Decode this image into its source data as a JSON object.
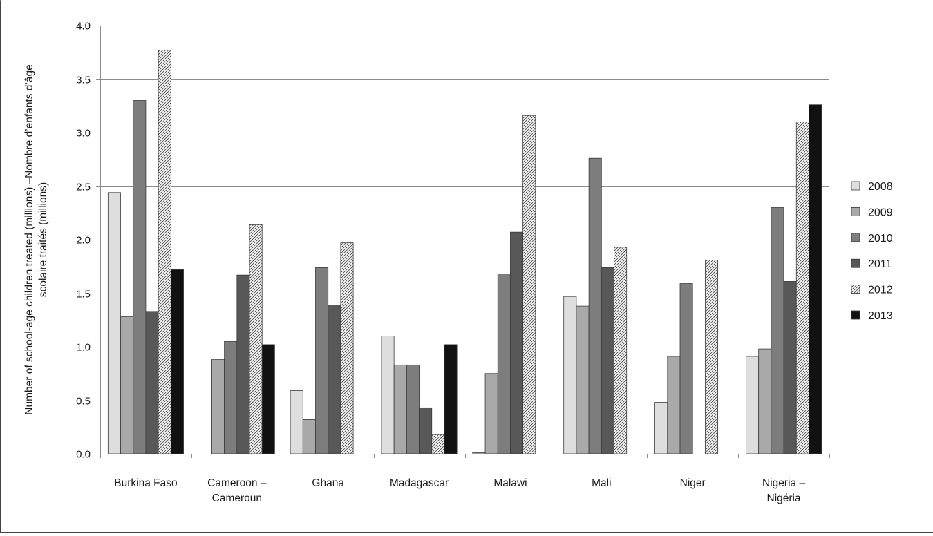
{
  "chart_data": {
    "type": "bar",
    "title": "",
    "ylabel_lines": [
      "Number of school-age children treated (millions) –Nombre d’enfants d’âge",
      "scolaire traités (millions)"
    ],
    "xlabel": "",
    "ylim": [
      0,
      4.0
    ],
    "yticks": [
      0.0,
      0.5,
      1.0,
      1.5,
      2.0,
      2.5,
      3.0,
      3.5,
      4.0
    ],
    "ytick_labels": [
      "0.0",
      "0.5",
      "1.0",
      "1.5",
      "2.0",
      "2.5",
      "3.0",
      "3.5",
      "4.0"
    ],
    "grid": true,
    "legend_position": "right",
    "categories": [
      [
        "Burkina Faso"
      ],
      [
        "Cameroon –",
        "Cameroun"
      ],
      [
        "Ghana"
      ],
      [
        "Madagascar"
      ],
      [
        "Malawi"
      ],
      [
        "Mali"
      ],
      [
        "Niger"
      ],
      [
        "Nigeria –",
        "Nigéria"
      ]
    ],
    "series": [
      {
        "name": "2008",
        "fill": "#dedede",
        "pattern": false,
        "values": [
          2.44,
          0,
          0.59,
          1.1,
          0.01,
          1.47,
          0.48,
          0.91
        ]
      },
      {
        "name": "2009",
        "fill": "#a9a9a9",
        "pattern": false,
        "values": [
          1.28,
          0.88,
          0.32,
          0.83,
          0.75,
          1.38,
          0.91,
          0.98
        ]
      },
      {
        "name": "2010",
        "fill": "#7d7d7d",
        "pattern": false,
        "values": [
          3.3,
          1.05,
          1.74,
          0.83,
          1.68,
          2.76,
          1.59,
          2.3
        ]
      },
      {
        "name": "2011",
        "fill": "#585858",
        "pattern": false,
        "values": [
          1.33,
          1.67,
          1.39,
          0.43,
          2.07,
          1.74,
          0,
          1.61
        ]
      },
      {
        "name": "2012",
        "fill": "#ffffff",
        "pattern": true,
        "values": [
          3.77,
          2.14,
          1.97,
          0.18,
          3.16,
          1.93,
          1.81,
          3.1
        ]
      },
      {
        "name": "2013",
        "fill": "#111111",
        "pattern": false,
        "values": [
          1.72,
          1.02,
          0,
          1.02,
          0,
          0,
          0,
          3.26
        ]
      }
    ]
  }
}
